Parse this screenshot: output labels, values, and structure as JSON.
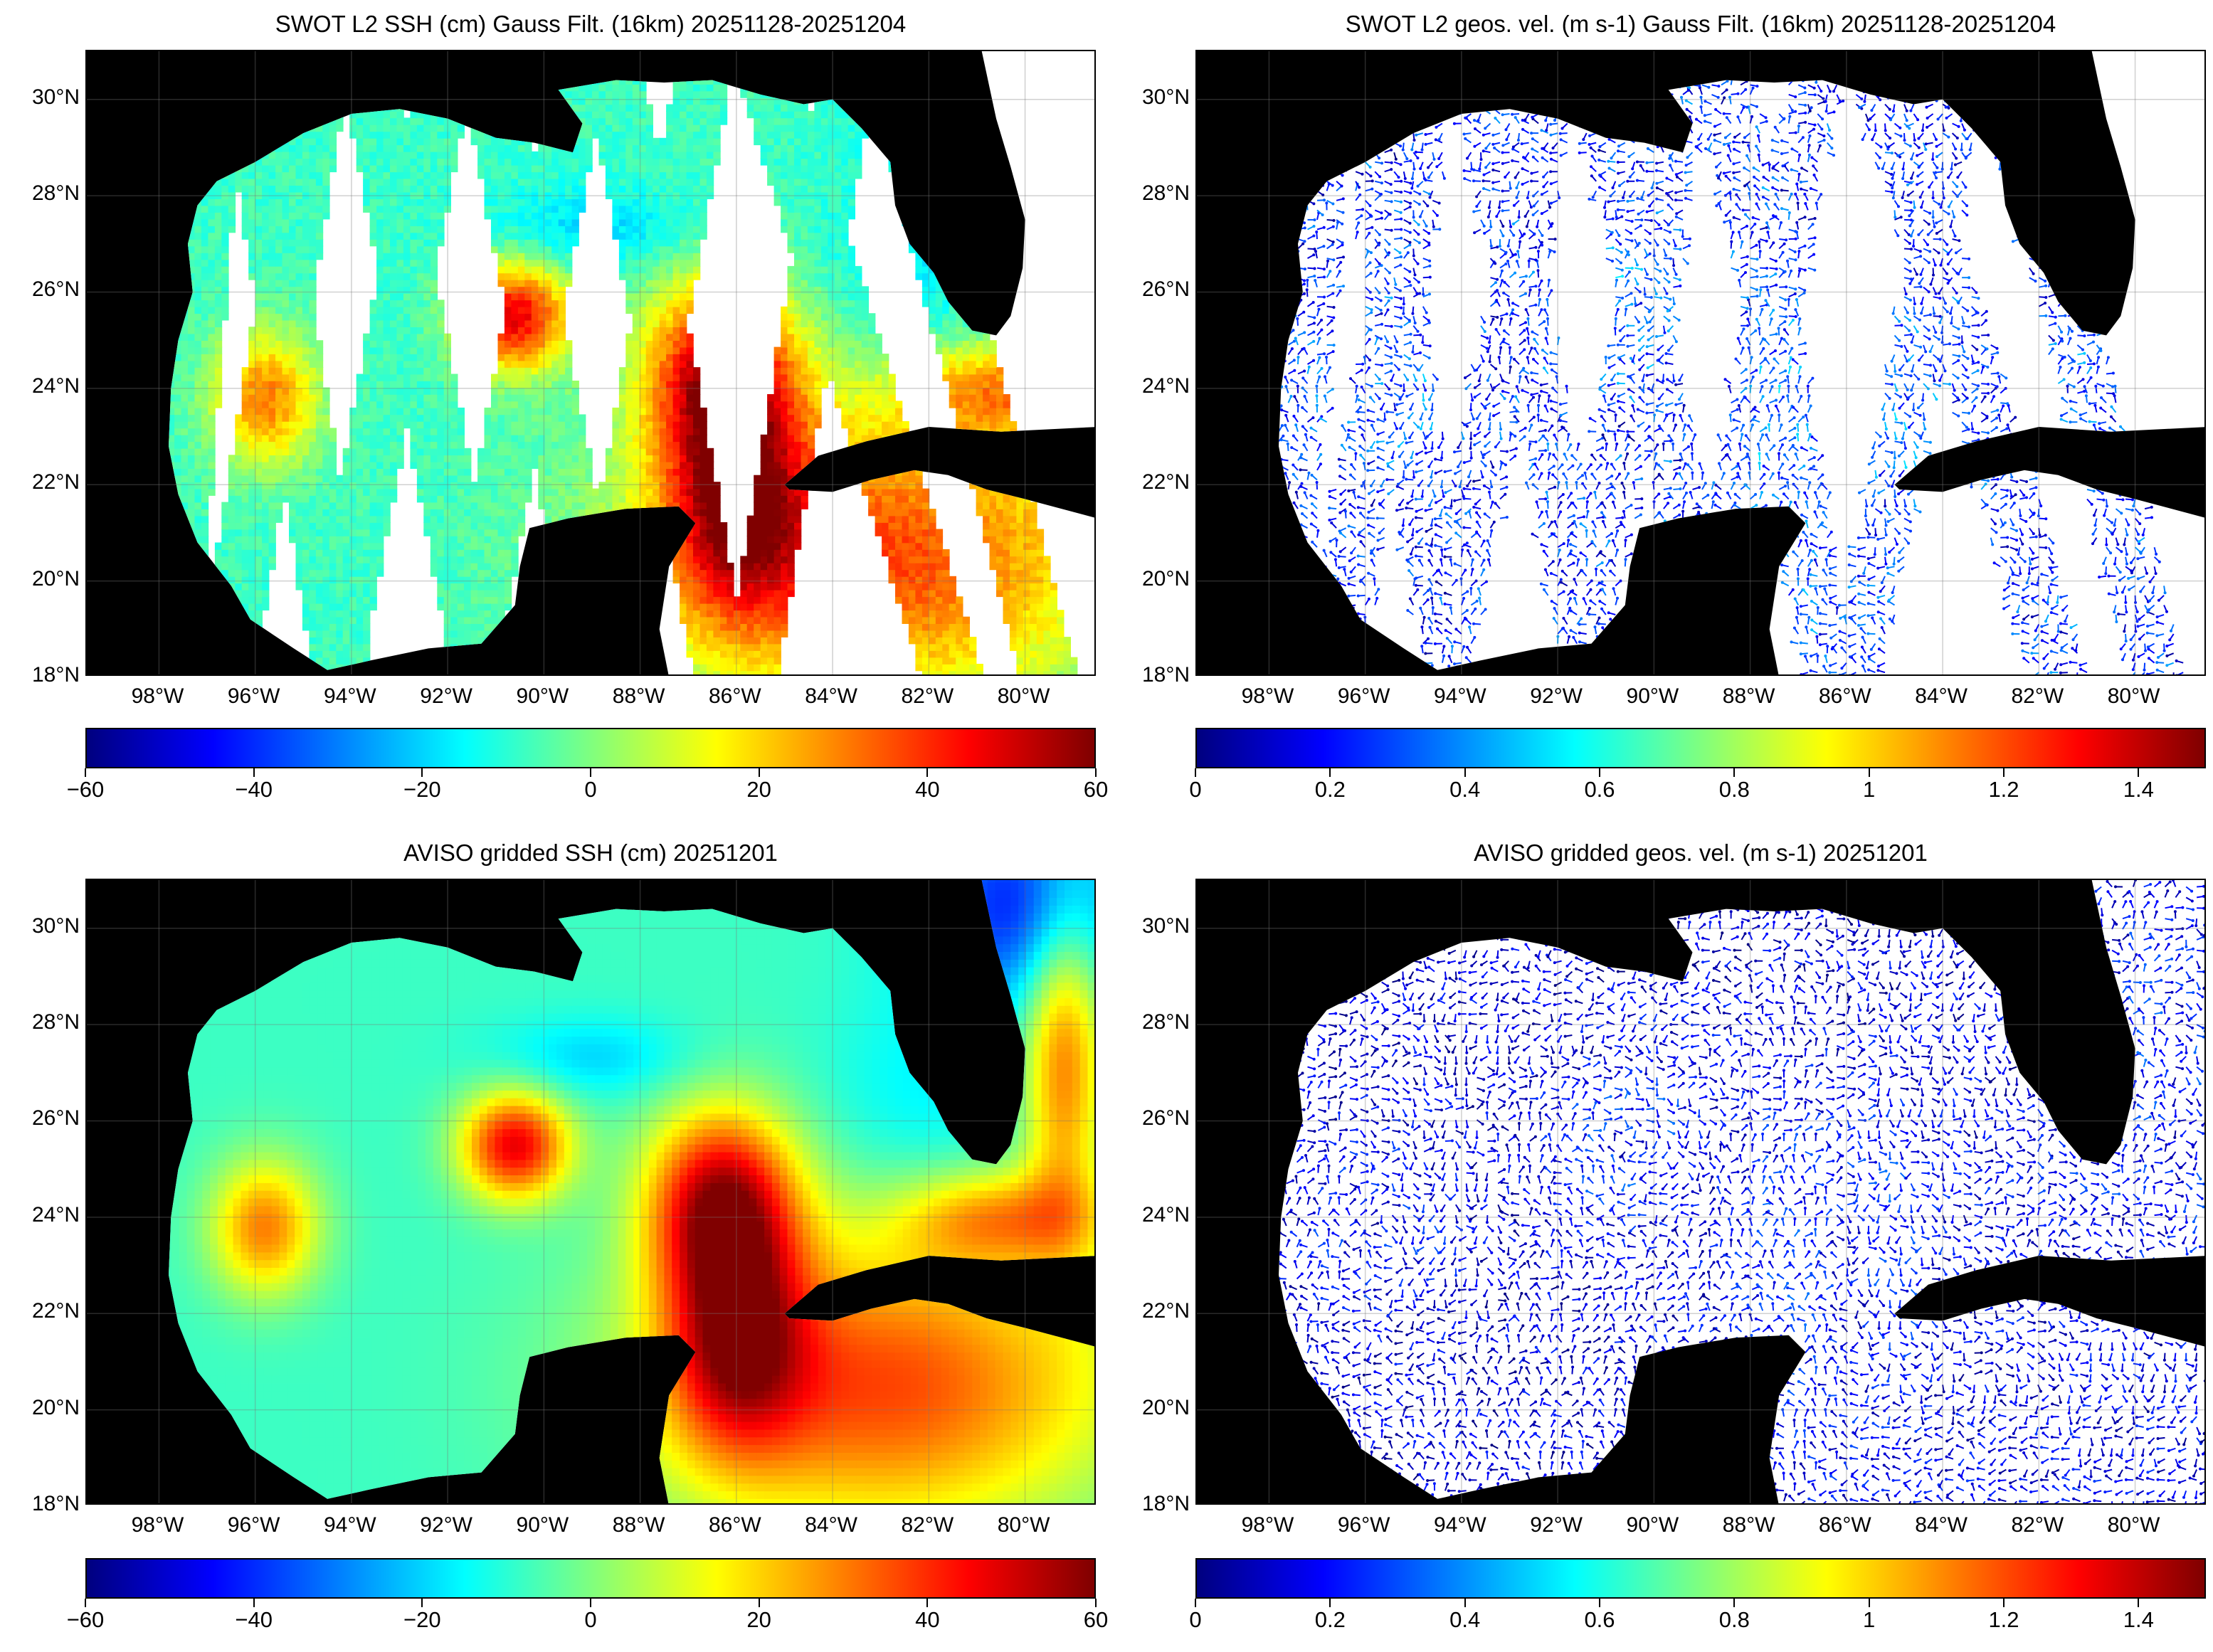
{
  "panels": [
    {
      "title": "SWOT L2 SSH (cm) Gauss Filt. (16km) 20251128-20251204",
      "kind": "ssh-swaths",
      "colorbar_ticks": [
        "−60",
        "−40",
        "−20",
        "0",
        "20",
        "40",
        "60"
      ],
      "colorbar_range": [
        -60,
        60
      ]
    },
    {
      "title": "SWOT L2 geos. vel. (m s-1) Gauss Filt. (16km) 20251128-20251204",
      "kind": "vel-swaths",
      "colorbar_ticks": [
        "0",
        "0.2",
        "0.4",
        "0.6",
        "0.8",
        "1",
        "1.2",
        "1.4"
      ],
      "colorbar_range": [
        0,
        1.5
      ]
    },
    {
      "title": "AVISO gridded SSH (cm) 20251201",
      "kind": "ssh-grid",
      "colorbar_ticks": [
        "−60",
        "−40",
        "−20",
        "0",
        "20",
        "40",
        "60"
      ],
      "colorbar_range": [
        -60,
        60
      ]
    },
    {
      "title": "AVISO gridded geos. vel. (m s-1)  20251201",
      "kind": "vel-grid",
      "colorbar_ticks": [
        "0",
        "0.2",
        "0.4",
        "0.6",
        "0.8",
        "1",
        "1.2",
        "1.4"
      ],
      "colorbar_range": [
        0,
        1.5
      ]
    }
  ],
  "lat_labels": [
    "30°N",
    "28°N",
    "26°N",
    "24°N",
    "22°N",
    "20°N",
    "18°N"
  ],
  "lon_labels": [
    "98°W",
    "96°W",
    "94°W",
    "92°W",
    "90°W",
    "88°W",
    "86°W",
    "84°W",
    "82°W",
    "80°W"
  ],
  "map_extent": {
    "lon": [
      -99.5,
      -78.5
    ],
    "lat": [
      18,
      31
    ]
  },
  "colormap": "jet",
  "colors": {
    "land": "#000000",
    "no_data": "#ffffff"
  }
}
